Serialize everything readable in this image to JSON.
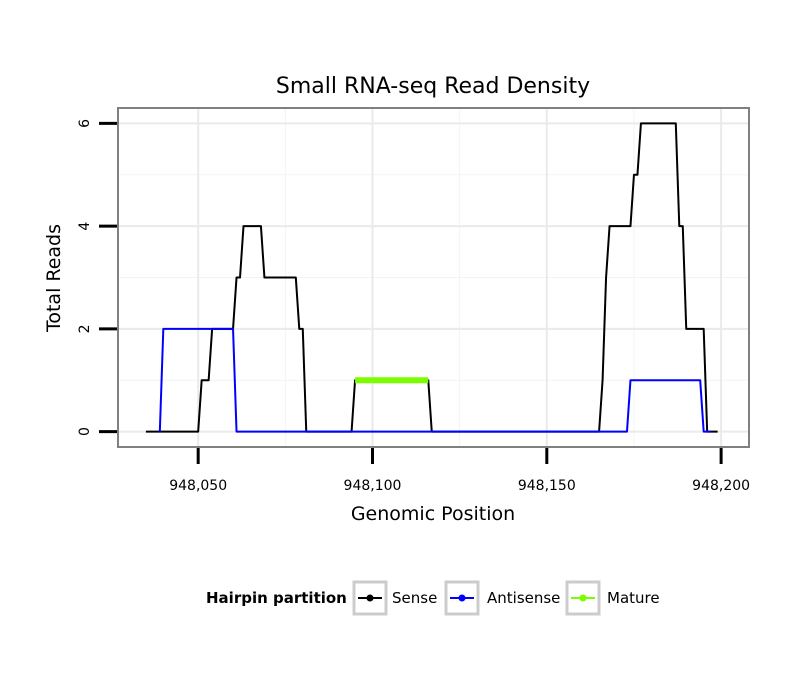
{
  "chart_data": {
    "type": "line",
    "title": "Small RNA-seq Read Density",
    "xlabel": "Genomic Position",
    "ylabel": "Total Reads",
    "xlim": [
      948027,
      948208
    ],
    "ylim": [
      -0.3,
      6.3
    ],
    "x_ticks": [
      {
        "value": 948050,
        "label": "948,050"
      },
      {
        "value": 948100,
        "label": "948,100"
      },
      {
        "value": 948150,
        "label": "948,150"
      },
      {
        "value": 948200,
        "label": "948,200"
      }
    ],
    "y_ticks": [
      {
        "value": 0,
        "label": "0"
      },
      {
        "value": 2,
        "label": "2"
      },
      {
        "value": 4,
        "label": "4"
      },
      {
        "value": 6,
        "label": "6"
      }
    ],
    "grid": true,
    "legend": {
      "title": "Hairpin partition",
      "position": "bottom"
    },
    "series": [
      {
        "name": "Sense",
        "color": "#000000",
        "x": [
          948035,
          948050,
          948051,
          948053,
          948054,
          948060,
          948061,
          948062,
          948063,
          948064,
          948068,
          948069,
          948078,
          948079,
          948080,
          948081,
          948094,
          948095,
          948116,
          948117,
          948165,
          948166,
          948167,
          948168,
          948169,
          948174,
          948175,
          948176,
          948177,
          948178,
          948187,
          948188,
          948189,
          948190,
          948194,
          948195,
          948196,
          948199
        ],
        "y": [
          0,
          0,
          1,
          1,
          2,
          2,
          3,
          3,
          4,
          4,
          4,
          3,
          3,
          2,
          2,
          0,
          0,
          1,
          1,
          0,
          0,
          1,
          3,
          4,
          4,
          4,
          5,
          5,
          6,
          6,
          6,
          4,
          4,
          2,
          2,
          2,
          0,
          0
        ]
      },
      {
        "name": "Antisense",
        "color": "#0000ff",
        "x": [
          948039,
          948040,
          948060,
          948061,
          948118,
          948173,
          948174,
          948194,
          948195,
          948197
        ],
        "y": [
          0,
          2,
          2,
          0,
          0,
          0,
          1,
          1,
          0,
          0
        ]
      },
      {
        "name": "Mature",
        "color": "#7cfc00",
        "x": [
          948095,
          948116
        ],
        "y": [
          1,
          1
        ]
      }
    ]
  }
}
